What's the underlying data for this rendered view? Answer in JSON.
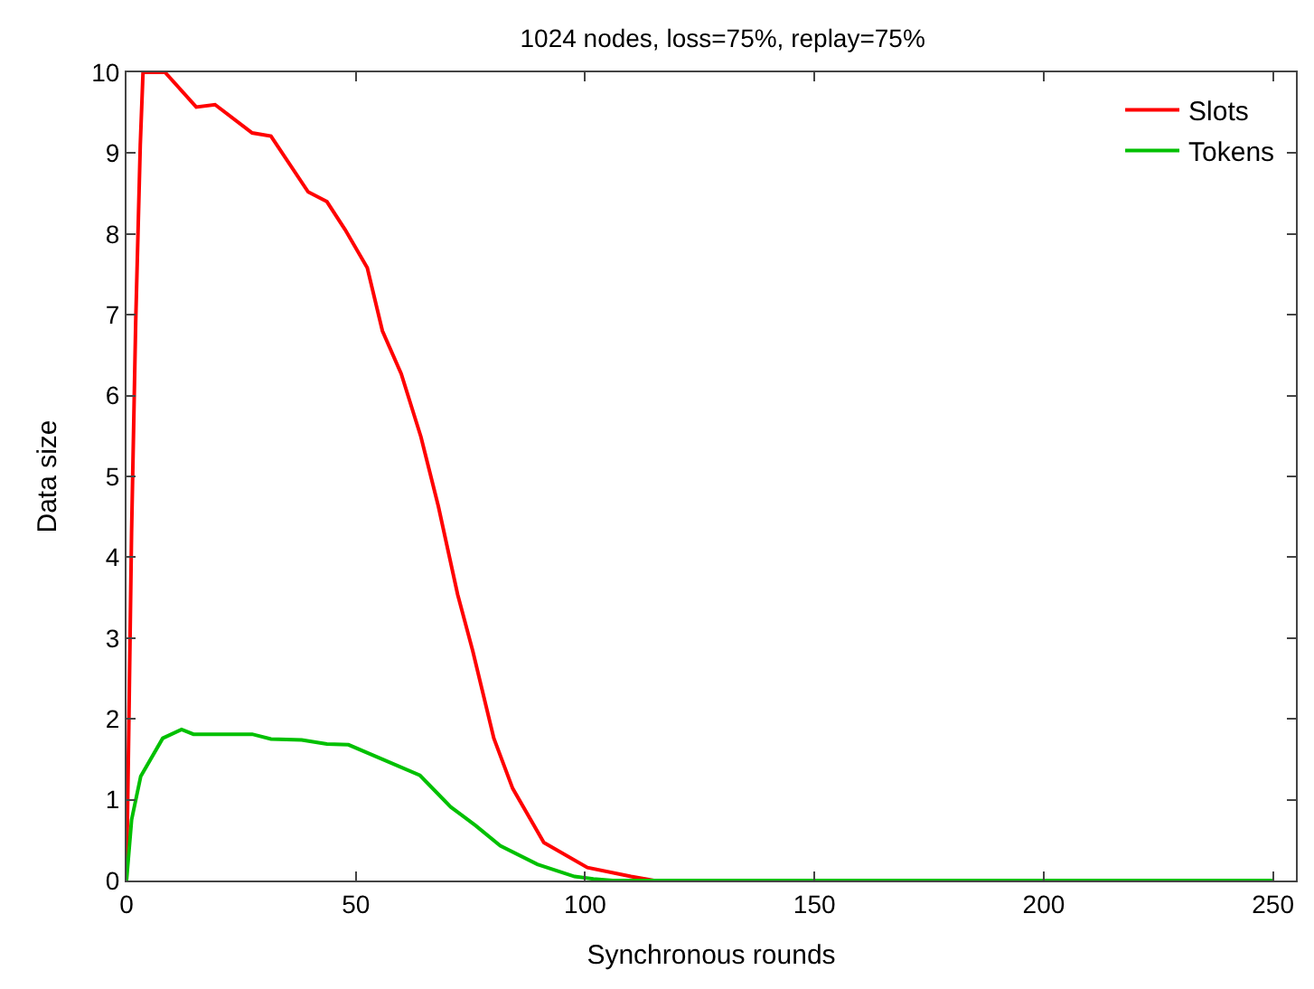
{
  "chart_data": {
    "type": "line",
    "title": "1024 nodes, loss=75%, replay=75%",
    "xlabel": "Synchronous rounds",
    "ylabel": "Data size",
    "xlim": [
      0,
      255
    ],
    "xticks": [
      0,
      50,
      100,
      150,
      200,
      250
    ],
    "ylim": [
      0,
      10
    ],
    "yticks": [
      0,
      1,
      2,
      3,
      4,
      5,
      6,
      7,
      8,
      9,
      10
    ],
    "legend": "top right",
    "marker": "none",
    "line_style": "solid",
    "series": [
      {
        "name": "Slots",
        "color": "#ff0000",
        "x": [
          0,
          0.5,
          1.1,
          2.0,
          3.0,
          3.6,
          8.4,
          15.2,
          19.3,
          27.4,
          31.5,
          39.6,
          43.7,
          47.7,
          52.5,
          55.8,
          59.9,
          64.2,
          68,
          72.2,
          75.5,
          80.1,
          84.2,
          91,
          100.5,
          110,
          115,
          250
        ],
        "values": [
          0,
          1.9,
          4.3,
          6.9,
          9.1,
          10,
          10,
          9.57,
          9.6,
          9.25,
          9.21,
          8.52,
          8.4,
          8.05,
          7.58,
          6.8,
          6.27,
          5.49,
          4.63,
          3.54,
          2.84,
          1.76,
          1.14,
          0.47,
          0.16,
          0.05,
          0,
          0
        ]
      },
      {
        "name": "Tokens",
        "color": "#00c000",
        "x": [
          0,
          1.1,
          3.1,
          7.9,
          12,
          14.6,
          27.4,
          31.5,
          38.2,
          43.7,
          48.4,
          55.8,
          64,
          70.7,
          76.1,
          81.5,
          89.6,
          97.7,
          101.8,
          106,
          250
        ],
        "values": [
          0,
          0.75,
          1.29,
          1.76,
          1.87,
          1.81,
          1.81,
          1.75,
          1.74,
          1.69,
          1.68,
          1.5,
          1.3,
          0.91,
          0.68,
          0.43,
          0.2,
          0.05,
          0.02,
          0,
          0
        ]
      }
    ]
  }
}
